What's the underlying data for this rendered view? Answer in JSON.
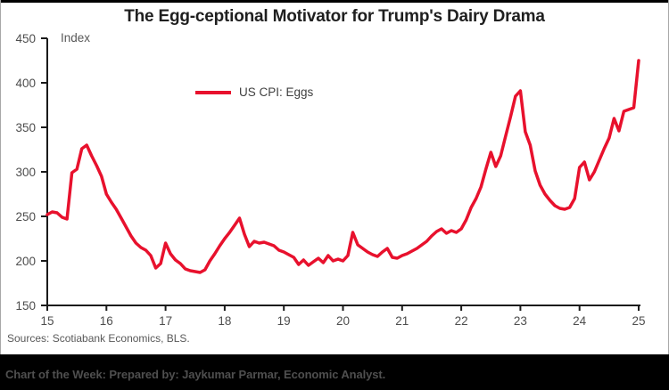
{
  "chart": {
    "title": "The Egg-ceptional Motivator for Trump's Dairy Drama",
    "y_axis_label": "Index",
    "legend": {
      "label": "US CPI: Eggs"
    },
    "source_note": "Sources: Scotiabank Economics, BLS."
  },
  "footer": {
    "text": "Chart of the Week: Prepared by: Jaykumar Parmar, Economic Analyst."
  },
  "colors": {
    "line_red": "#e8112d",
    "axis": "#1a1a1a",
    "tick_label": "#4d4d4d",
    "footer_bar": "#000000"
  },
  "chart_data": {
    "type": "line",
    "title": "The Egg-ceptional Motivator for Trump's Dairy Drama",
    "xlabel": "",
    "ylabel": "Index",
    "grid": false,
    "legend_position": "inside-top-left",
    "ylim": [
      150,
      450
    ],
    "y_ticks": [
      450,
      400,
      350,
      300,
      250,
      200,
      150
    ],
    "x_ticks": [
      "15",
      "16",
      "17",
      "18",
      "19",
      "20",
      "21",
      "22",
      "23",
      "24",
      "25"
    ],
    "series": [
      {
        "name": "US CPI: Eggs",
        "color": "#e8112d",
        "frequency": "monthly",
        "start": "2015-01",
        "end": "2025-01",
        "values": [
          252,
          255,
          254,
          249,
          247,
          299,
          303,
          326,
          330,
          318,
          307,
          295,
          275,
          266,
          258,
          248,
          238,
          228,
          220,
          215,
          212,
          206,
          192,
          197,
          220,
          208,
          201,
          197,
          191,
          189,
          188,
          187,
          190,
          200,
          208,
          217,
          225,
          232,
          240,
          248,
          230,
          216,
          222,
          220,
          221,
          219,
          217,
          212,
          210,
          207,
          204,
          196,
          201,
          195,
          199,
          203,
          198,
          206,
          200,
          202,
          200,
          206,
          232,
          218,
          214,
          210,
          207,
          205,
          210,
          214,
          204,
          203,
          206,
          208,
          211,
          214,
          218,
          222,
          228,
          233,
          236,
          231,
          234,
          232,
          236,
          246,
          260,
          270,
          283,
          303,
          322,
          306,
          318,
          340,
          362,
          385,
          391,
          345,
          330,
          301,
          285,
          275,
          268,
          262,
          259,
          258,
          260,
          270,
          305,
          311,
          291,
          300,
          313,
          326,
          338,
          360,
          346,
          368,
          370,
          372,
          425
        ]
      }
    ]
  }
}
